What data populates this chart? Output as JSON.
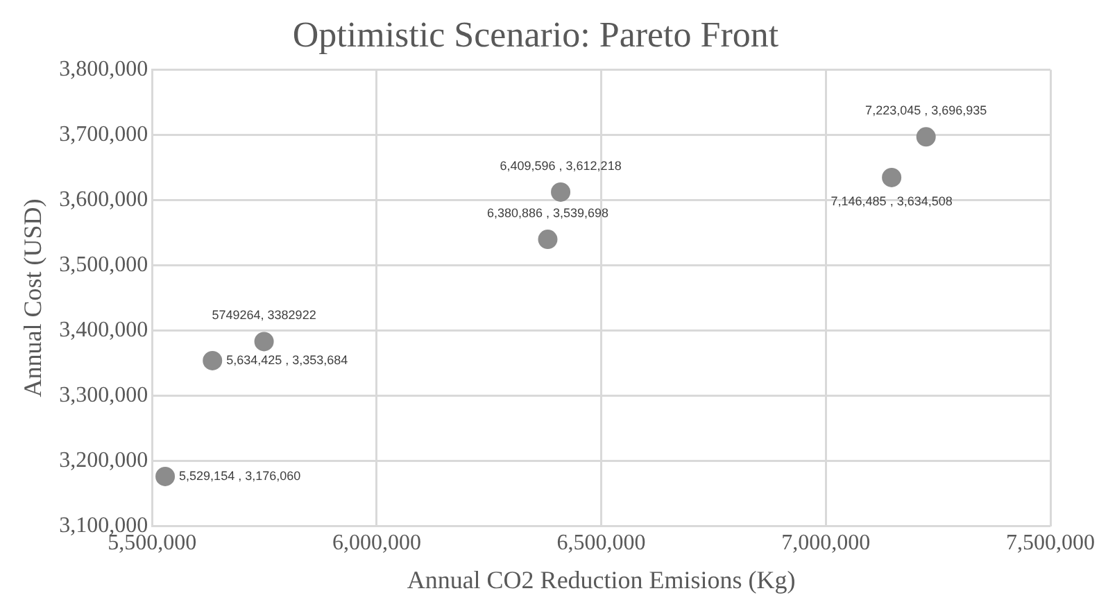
{
  "chart_data": {
    "type": "scatter",
    "title": "Optimistic Scenario: Pareto Front",
    "xlabel": "Annual CO2 Reduction Emisions (Kg)",
    "ylabel": "Annual Cost (USD)",
    "x": [
      5529154,
      5634425,
      5749264,
      6380886,
      6409596,
      7146485,
      7223045
    ],
    "values": [
      3176060,
      3353684,
      3382922,
      3539698,
      3612218,
      3634508,
      3696935
    ],
    "value_labels": [
      "5,529,154 , 3,176,060",
      "5,634,425 , 3,353,684",
      "5749264, 3382922",
      "6,380,886 , 3,539,698",
      "6,409,596 , 3,612,218",
      "7,146,485 , 3,634,508",
      "7,223,045 , 3,696,935"
    ],
    "color": "#8c8c8c",
    "marker": "circle",
    "xlim": [
      5500000,
      7500000
    ],
    "xticks": [
      {
        "value": 5500000,
        "label": "5,500,000"
      },
      {
        "value": 6000000,
        "label": "6,000,000"
      },
      {
        "value": 6500000,
        "label": "6,500,000"
      },
      {
        "value": 7000000,
        "label": "7,000,000"
      },
      {
        "value": 7500000,
        "label": "7,500,000"
      }
    ],
    "ylim": [
      3100000,
      3800000
    ],
    "yticks": [
      {
        "value": 3100000,
        "label": "3,100,000"
      },
      {
        "value": 3200000,
        "label": "3,200,000"
      },
      {
        "value": 3300000,
        "label": "3,300,000"
      },
      {
        "value": 3400000,
        "label": "3,400,000"
      },
      {
        "value": 3500000,
        "label": "3,500,000"
      },
      {
        "value": 3600000,
        "label": "3,600,000"
      },
      {
        "value": 3700000,
        "label": "3,700,000"
      },
      {
        "value": 3800000,
        "label": "3,800,000"
      }
    ],
    "grid": true,
    "legend": false
  }
}
